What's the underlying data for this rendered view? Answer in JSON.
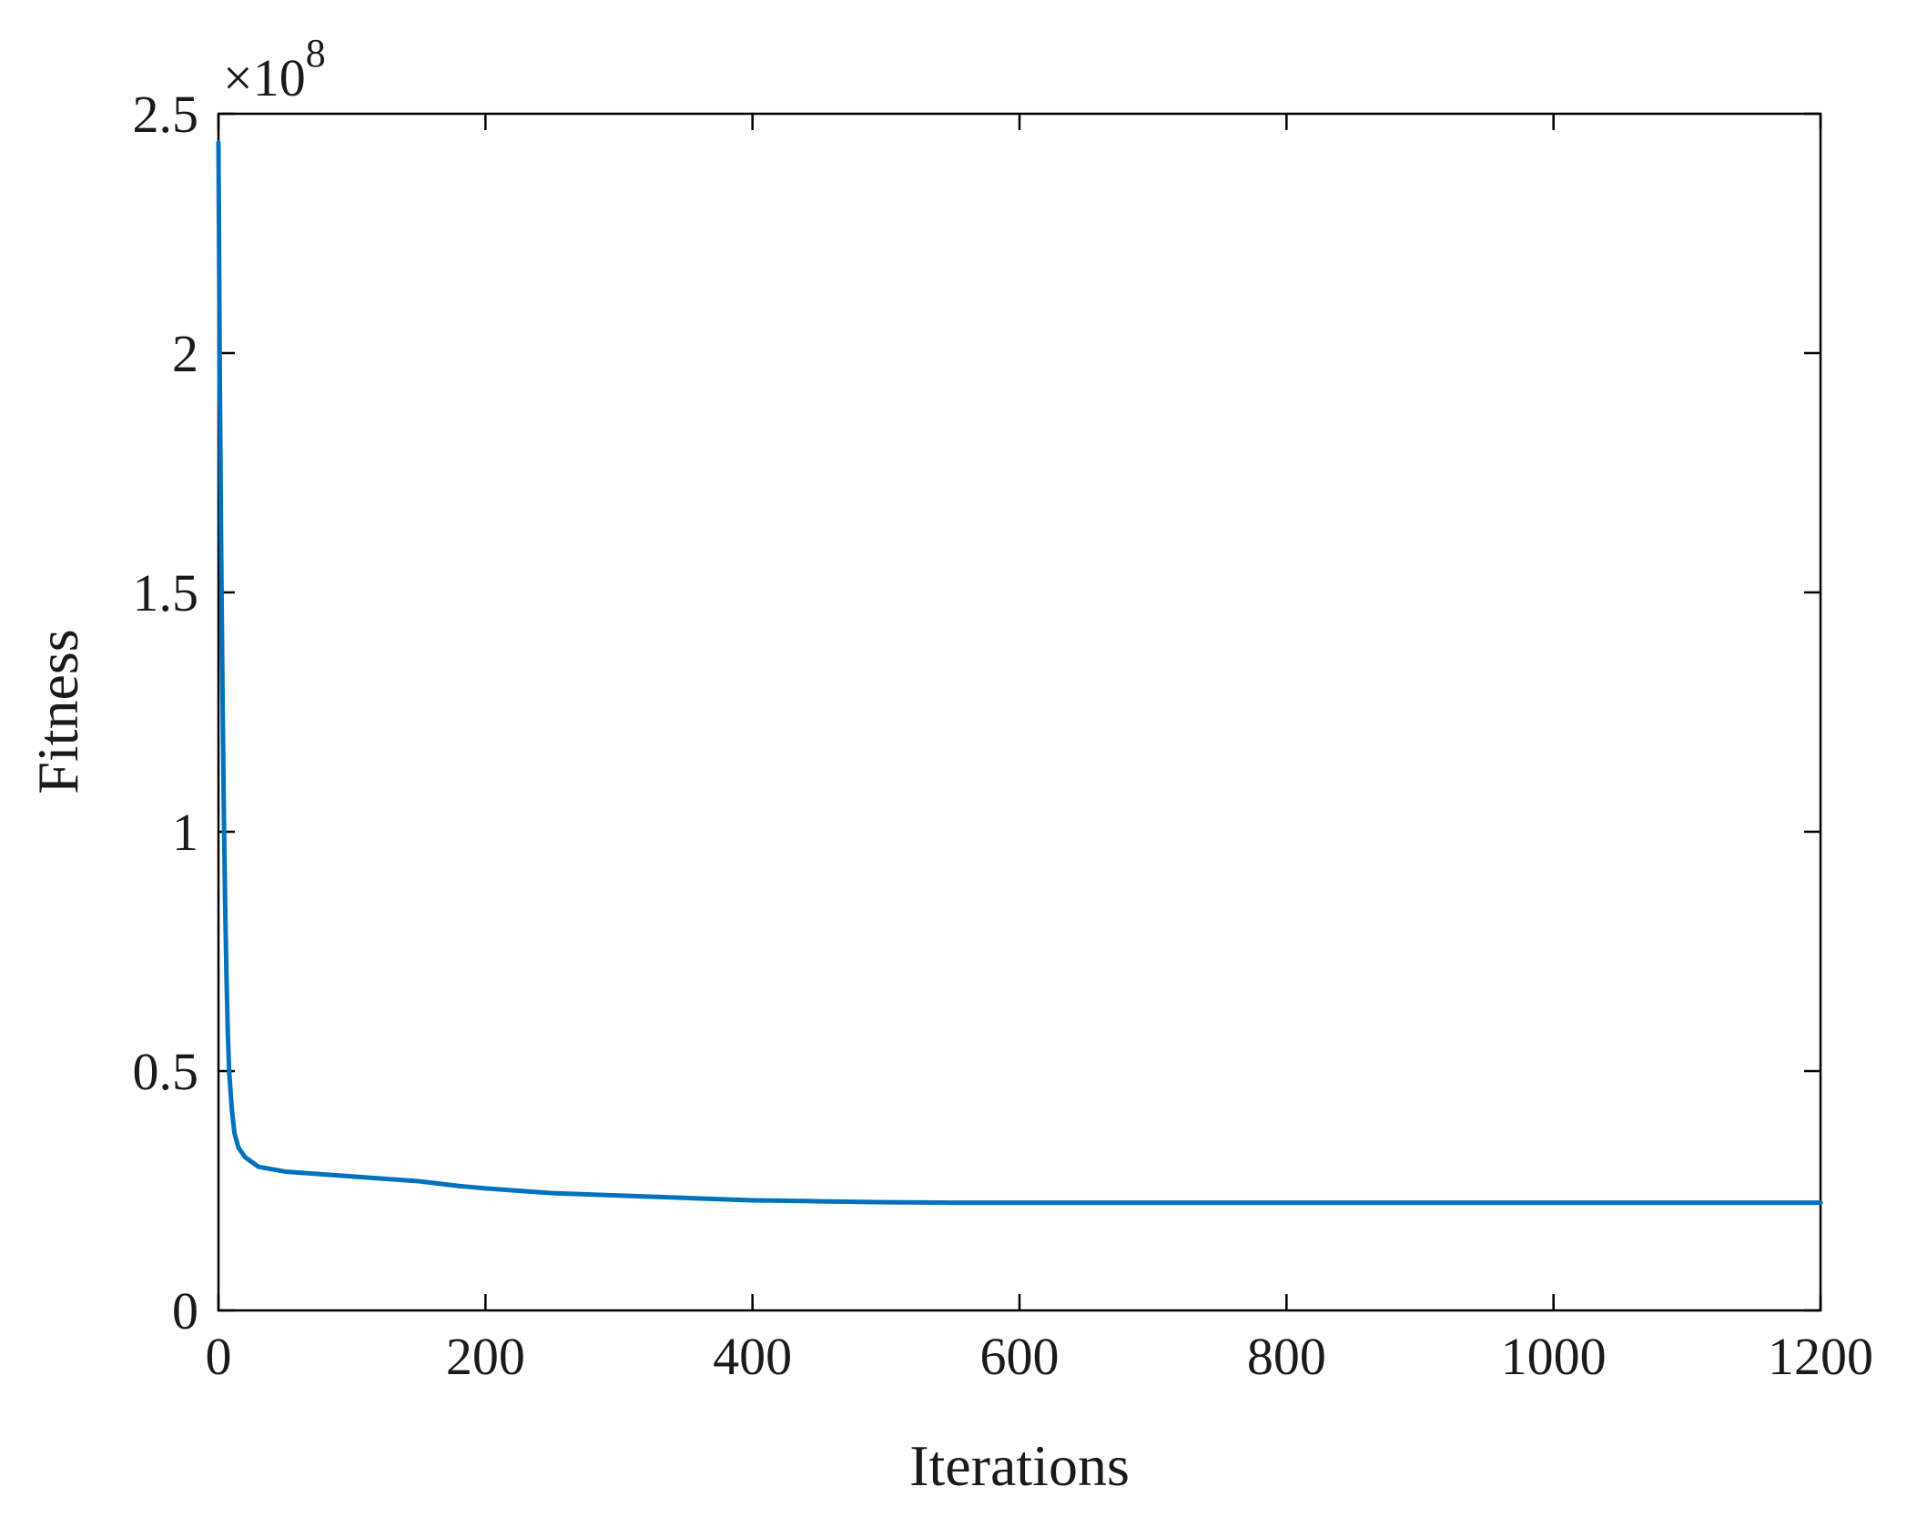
{
  "chart_data": {
    "type": "line",
    "title": "",
    "xlabel": "Iterations",
    "ylabel": "Fitness",
    "y_exponent_base": "×10",
    "y_exponent": "8",
    "xlim": [
      0,
      1200
    ],
    "ylim": [
      0,
      2.5
    ],
    "x_ticks": [
      0,
      200,
      400,
      600,
      800,
      1000,
      1200
    ],
    "x_tick_labels": [
      "0",
      "200",
      "400",
      "600",
      "800",
      "1000",
      "1200"
    ],
    "y_ticks": [
      0,
      0.5,
      1,
      1.5,
      2,
      2.5
    ],
    "y_tick_labels": [
      "0",
      "0.5",
      "1",
      "1.5",
      "2",
      "2.5"
    ],
    "grid": false,
    "line_color": "#0072BD",
    "series": [
      {
        "x": [
          0,
          1,
          2,
          3,
          4,
          5,
          6,
          7,
          8,
          10,
          12,
          15,
          20,
          30,
          50,
          100,
          150,
          180,
          200,
          250,
          300,
          350,
          400,
          450,
          500,
          550,
          600,
          700,
          800,
          900,
          1000,
          1100,
          1200
        ],
        "values": [
          2.44,
          1.95,
          1.6,
          1.3,
          1.05,
          0.85,
          0.7,
          0.58,
          0.5,
          0.42,
          0.37,
          0.34,
          0.32,
          0.3,
          0.29,
          0.28,
          0.27,
          0.26,
          0.255,
          0.245,
          0.24,
          0.235,
          0.23,
          0.228,
          0.226,
          0.225,
          0.225,
          0.225,
          0.225,
          0.225,
          0.225,
          0.225,
          0.225
        ]
      }
    ]
  }
}
